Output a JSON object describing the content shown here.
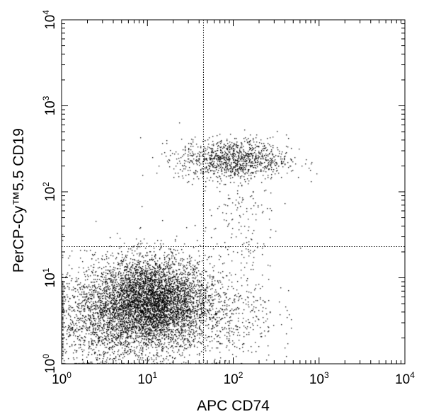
{
  "chart_data": {
    "type": "scatter",
    "title": "",
    "xlabel": "APC CD74",
    "ylabel": "PerCP-Cy™5.5 CD19",
    "xscale": "log",
    "yscale": "log",
    "xlim": [
      1,
      10000
    ],
    "ylim": [
      1,
      10000
    ],
    "x_ticks": [
      {
        "value": 1,
        "base": "10",
        "exp": "0"
      },
      {
        "value": 10,
        "base": "10",
        "exp": "1"
      },
      {
        "value": 100,
        "base": "10",
        "exp": "2"
      },
      {
        "value": 1000,
        "base": "10",
        "exp": "3"
      },
      {
        "value": 10000,
        "base": "10",
        "exp": "4"
      }
    ],
    "y_ticks": [
      {
        "value": 1,
        "base": "10",
        "exp": "0"
      },
      {
        "value": 10,
        "base": "10",
        "exp": "1"
      },
      {
        "value": 100,
        "base": "10",
        "exp": "2"
      },
      {
        "value": 1000,
        "base": "10",
        "exp": "3"
      },
      {
        "value": 10000,
        "base": "10",
        "exp": "4"
      }
    ],
    "quadrant_gates": {
      "x": 45,
      "y": 23
    },
    "grid": false,
    "marker_color": "#000000",
    "populations": [
      {
        "log_x_mean": 1.05,
        "log_y_mean": 0.7,
        "log_x_sd": 0.33,
        "log_y_sd": 0.27,
        "count": 5200
      },
      {
        "log_x_mean": 0.4,
        "log_y_mean": 0.55,
        "log_x_sd": 0.28,
        "log_y_sd": 0.3,
        "count": 1100
      },
      {
        "log_x_mean": 2.0,
        "log_y_mean": 2.38,
        "log_x_sd": 0.32,
        "log_y_sd": 0.12,
        "count": 1100
      },
      {
        "log_x_mean": 2.05,
        "log_y_mean": 1.65,
        "log_x_sd": 0.22,
        "log_y_sd": 0.3,
        "count": 140
      },
      {
        "log_x_mean": 1.9,
        "log_y_mean": 0.6,
        "log_x_sd": 0.3,
        "log_y_sd": 0.3,
        "count": 450
      }
    ]
  }
}
